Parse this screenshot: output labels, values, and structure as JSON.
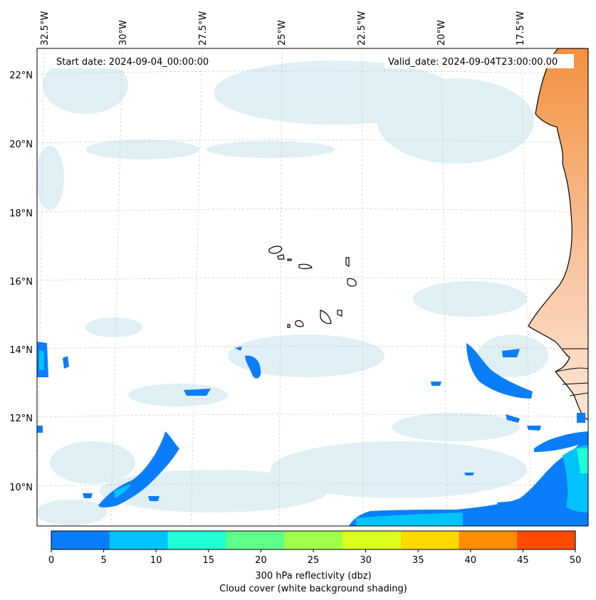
{
  "map": {
    "start_date": "Start date: 2024-09-04_00:00:00",
    "valid_date": "Valid_date: 2024-09-04T23:00:00.00",
    "lon_labels": [
      "32.5°W",
      "30°W",
      "27.5°W",
      "25°W",
      "22.5°W",
      "20°W",
      "17.5°W"
    ],
    "lat_labels": [
      "22°N",
      "20°N",
      "18°N",
      "16°N",
      "14°N",
      "12°N",
      "10°N"
    ],
    "colorbar": {
      "ticks": [
        "0",
        "5",
        "10",
        "15",
        "20",
        "25",
        "30",
        "35",
        "40",
        "45",
        "50"
      ],
      "colors": [
        "#0a7dfb",
        "#00c3fb",
        "#1ffed7",
        "#5ffe8a",
        "#a0fd4b",
        "#dbfe1c",
        "#fed900",
        "#fe8d00",
        "#fe4b00"
      ],
      "label_line1": "300 hPa reflectivity (dbz)",
      "label_line2": "Cloud cover (white background shading)"
    },
    "colors": {
      "land": "#f5a36a",
      "cloud": "#cfe6ee",
      "reflectivity_low": "#0a7dfb",
      "reflectivity_mid": "#1ffed7"
    }
  }
}
